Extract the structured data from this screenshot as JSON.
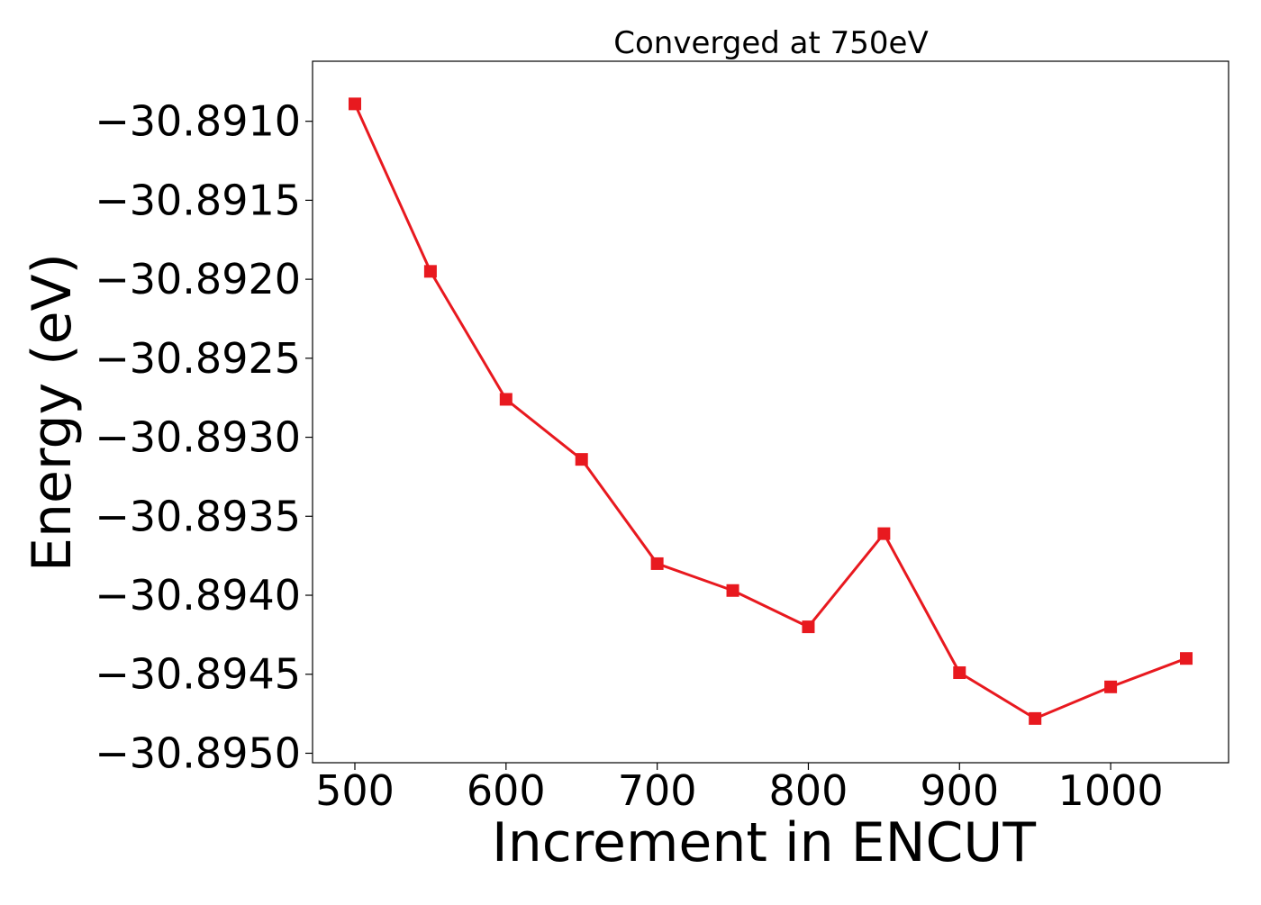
{
  "chart_data": {
    "type": "line",
    "title": "Converged at 750eV",
    "xlabel": "Increment in ENCUT",
    "ylabel": "Energy (eV)",
    "xlim": [
      472,
      1078
    ],
    "ylim": [
      -30.89506,
      -30.89062
    ],
    "x_ticks": [
      500,
      600,
      700,
      800,
      900,
      1000
    ],
    "x_tick_labels": [
      "500",
      "600",
      "700",
      "800",
      "900",
      "1000"
    ],
    "y_ticks": [
      -30.891,
      -30.8915,
      -30.892,
      -30.8925,
      -30.893,
      -30.8935,
      -30.894,
      -30.8945,
      -30.895
    ],
    "y_tick_labels": [
      "−30.8910",
      "−30.8915",
      "−30.8920",
      "−30.8925",
      "−30.8930",
      "−30.8935",
      "−30.8940",
      "−30.8945",
      "−30.8950"
    ],
    "grid": false,
    "legend": "none",
    "series": [
      {
        "color": "#e8191f",
        "marker": "square",
        "x": [
          500,
          550,
          600,
          650,
          700,
          750,
          800,
          850,
          900,
          950,
          1000,
          1050
        ],
        "y": [
          -30.89089,
          -30.89195,
          -30.89276,
          -30.89314,
          -30.8938,
          -30.89397,
          -30.8942,
          -30.89361,
          -30.89449,
          -30.89478,
          -30.89458,
          -30.8944
        ]
      }
    ]
  }
}
